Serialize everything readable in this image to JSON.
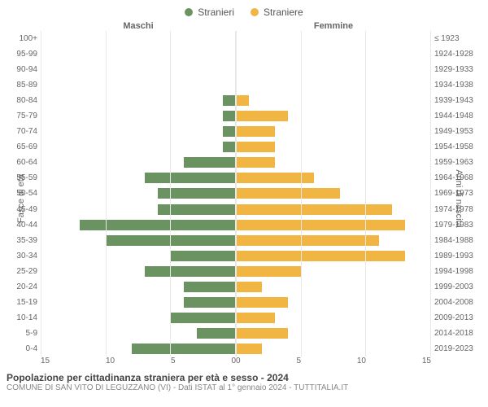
{
  "legend": {
    "male": {
      "label": "Stranieri",
      "color": "#6b9362"
    },
    "female": {
      "label": "Straniere",
      "color": "#f0b543"
    }
  },
  "headers": {
    "left": "Maschi",
    "right": "Femmine"
  },
  "axes": {
    "left_label": "Fasce di età",
    "right_label": "Anni di nascita",
    "xlim": 15,
    "xticks": [
      0,
      5,
      10,
      15
    ]
  },
  "colors": {
    "male_bar": "#6b9362",
    "female_bar": "#f0b543",
    "background": "#ffffff",
    "grid": "#e8e8e8",
    "text": "#666666"
  },
  "age_groups": [
    {
      "label": "100+",
      "birth": "≤ 1923",
      "male": 0,
      "female": 0
    },
    {
      "label": "95-99",
      "birth": "1924-1928",
      "male": 0,
      "female": 0
    },
    {
      "label": "90-94",
      "birth": "1929-1933",
      "male": 0,
      "female": 0
    },
    {
      "label": "85-89",
      "birth": "1934-1938",
      "male": 0,
      "female": 0
    },
    {
      "label": "80-84",
      "birth": "1939-1943",
      "male": 1,
      "female": 1
    },
    {
      "label": "75-79",
      "birth": "1944-1948",
      "male": 1,
      "female": 4
    },
    {
      "label": "70-74",
      "birth": "1949-1953",
      "male": 1,
      "female": 3
    },
    {
      "label": "65-69",
      "birth": "1954-1958",
      "male": 1,
      "female": 3
    },
    {
      "label": "60-64",
      "birth": "1959-1963",
      "male": 4,
      "female": 3
    },
    {
      "label": "55-59",
      "birth": "1964-1968",
      "male": 7,
      "female": 6
    },
    {
      "label": "50-54",
      "birth": "1969-1973",
      "male": 6,
      "female": 8
    },
    {
      "label": "45-49",
      "birth": "1974-1978",
      "male": 6,
      "female": 12
    },
    {
      "label": "40-44",
      "birth": "1979-1983",
      "male": 12,
      "female": 13
    },
    {
      "label": "35-39",
      "birth": "1984-1988",
      "male": 10,
      "female": 11
    },
    {
      "label": "30-34",
      "birth": "1989-1993",
      "male": 5,
      "female": 13
    },
    {
      "label": "25-29",
      "birth": "1994-1998",
      "male": 7,
      "female": 5
    },
    {
      "label": "20-24",
      "birth": "1999-2003",
      "male": 4,
      "female": 2
    },
    {
      "label": "15-19",
      "birth": "2004-2008",
      "male": 4,
      "female": 4
    },
    {
      "label": "10-14",
      "birth": "2009-2013",
      "male": 5,
      "female": 3
    },
    {
      "label": "5-9",
      "birth": "2014-2018",
      "male": 3,
      "female": 4
    },
    {
      "label": "0-4",
      "birth": "2019-2023",
      "male": 8,
      "female": 2
    }
  ],
  "footer": {
    "title": "Popolazione per cittadinanza straniera per età e sesso - 2024",
    "subtitle": "COMUNE DI SAN VITO DI LEGUZZANO (VI) - Dati ISTAT al 1° gennaio 2024 - TUTTITALIA.IT"
  }
}
